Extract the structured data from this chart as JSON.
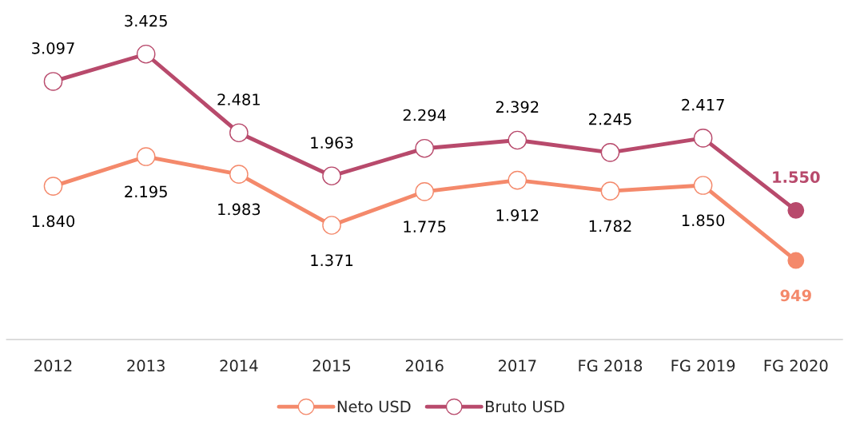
{
  "chart_data": {
    "type": "line",
    "categories": [
      "2012",
      "2013",
      "2014",
      "2015",
      "2016",
      "2017",
      "FG 2018",
      "FG 2019",
      "FG 2020"
    ],
    "series": [
      {
        "name": "Neto USD",
        "color": "#f4896b",
        "values": [
          1840,
          2195,
          1983,
          1371,
          1775,
          1912,
          1782,
          1850,
          949
        ],
        "value_labels": [
          "1.840",
          "2.195",
          "1.983",
          "1.371",
          "1.775",
          "1.912",
          "1.782",
          "1.850",
          "949"
        ]
      },
      {
        "name": "Bruto USD",
        "color": "#b84a6c",
        "values": [
          3097,
          3425,
          2481,
          1963,
          2294,
          2392,
          2245,
          2417,
          1550
        ],
        "value_labels": [
          "3.097",
          "3.425",
          "2.481",
          "1.963",
          "2.294",
          "2.392",
          "2.245",
          "2.417",
          "1.550"
        ]
      }
    ],
    "marker": "circle",
    "line_style": "solid",
    "legend": "bottom",
    "grid": false,
    "tick_labels": "x"
  }
}
